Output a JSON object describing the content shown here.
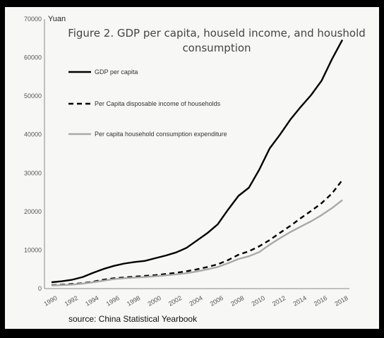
{
  "chart_data": {
    "type": "line",
    "title_lines": [
      "Figure 2. GDP per capita, houseld income, and houshold",
      "consumption"
    ],
    "ylabel": "Yuan",
    "source": "source: China Statistical Yearbook",
    "ylim": [
      0,
      70000
    ],
    "y_ticks": [
      "0",
      "10000",
      "20000",
      "30000",
      "40000",
      "50000",
      "60000",
      "70000"
    ],
    "x_ticks": [
      "1990",
      "1992",
      "1994",
      "1996",
      "1998",
      "2000",
      "2002",
      "2004",
      "2006",
      "2008",
      "2010",
      "2012",
      "2014",
      "2016",
      "2018"
    ],
    "x": [
      1990,
      1991,
      1992,
      1993,
      1994,
      1995,
      1996,
      1997,
      1998,
      1999,
      2000,
      2001,
      2002,
      2003,
      2004,
      2005,
      2006,
      2007,
      2008,
      2009,
      2010,
      2011,
      2012,
      2013,
      2014,
      2015,
      2016,
      2017,
      2018
    ],
    "legend_position": "top-left",
    "series": [
      {
        "name": "GDP per capita",
        "style": "solid",
        "color": "#000000",
        "values": [
          1650,
          1900,
          2300,
          3000,
          4100,
          5100,
          5900,
          6500,
          6900,
          7200,
          7900,
          8600,
          9400,
          10600,
          12500,
          14400,
          16700,
          20500,
          24100,
          26200,
          30900,
          36400,
          40000,
          43900,
          47200,
          50300,
          54000,
          59600,
          64600
        ]
      },
      {
        "name": "Per Capita disposable income of households",
        "style": "dashed",
        "color": "#000000",
        "values": [
          900,
          1000,
          1200,
          1400,
          1800,
          2300,
          2700,
          2900,
          3100,
          3300,
          3500,
          3800,
          4100,
          4500,
          5000,
          5600,
          6300,
          7400,
          8800,
          9700,
          11000,
          12600,
          14500,
          16300,
          18300,
          20200,
          22200,
          24700,
          28200
        ]
      },
      {
        "name": "Per capita household consumption expenditure",
        "style": "solid",
        "color": "#a9a9a9",
        "values": [
          800,
          900,
          1050,
          1300,
          1650,
          2050,
          2450,
          2700,
          2850,
          3000,
          3200,
          3450,
          3700,
          4000,
          4450,
          5000,
          5600,
          6600,
          7700,
          8400,
          9500,
          11400,
          13100,
          14700,
          16100,
          17500,
          19100,
          20900,
          23000
        ]
      }
    ]
  }
}
